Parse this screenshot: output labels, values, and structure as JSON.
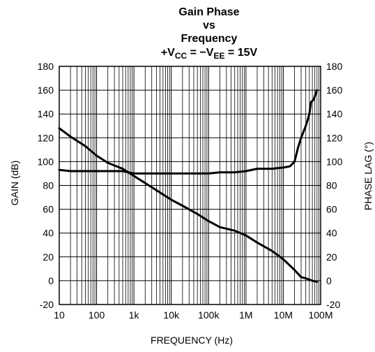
{
  "chart_data": {
    "type": "line",
    "title_lines": [
      "Gain Phase",
      "vs",
      "Frequency"
    ],
    "subtitle": {
      "p1": "+V",
      "s1": "CC",
      "p2": " = −V",
      "s2": "EE",
      "p3": " = 15V"
    },
    "xlabel": "FREQUENCY (Hz)",
    "ylabel_left": "GAIN (dB)",
    "ylabel_right": "PHASE LAG (°)",
    "x_scale": "log",
    "xlim": [
      10,
      100000000
    ],
    "ylim": [
      -20,
      180
    ],
    "x_ticks": [
      {
        "value": 10,
        "label": "10"
      },
      {
        "value": 100,
        "label": "100"
      },
      {
        "value": 1000,
        "label": "1k"
      },
      {
        "value": 10000,
        "label": "10k"
      },
      {
        "value": 100000,
        "label": "100k"
      },
      {
        "value": 1000000,
        "label": "1M"
      },
      {
        "value": 10000000,
        "label": "10M"
      },
      {
        "value": 100000000,
        "label": "100M"
      }
    ],
    "y_ticks_left": [
      "-20",
      "0",
      "20",
      "40",
      "60",
      "80",
      "100",
      "120",
      "140",
      "160",
      "180"
    ],
    "y_ticks_right": [
      "-20",
      "0",
      "20",
      "40",
      "60",
      "80",
      "100",
      "120",
      "140",
      "160",
      "180"
    ],
    "grid": true,
    "series": [
      {
        "points": [
          [
            10,
            128
          ],
          [
            20,
            121
          ],
          [
            50,
            113
          ],
          [
            100,
            105
          ],
          [
            200,
            99
          ],
          [
            500,
            94
          ],
          [
            1000,
            88
          ],
          [
            2000,
            82
          ],
          [
            5000,
            74
          ],
          [
            10000,
            68
          ],
          [
            20000,
            63
          ],
          [
            50000,
            56
          ],
          [
            100000,
            50
          ],
          [
            200000,
            45
          ],
          [
            500000,
            42
          ],
          [
            1000000,
            38
          ],
          [
            2000000,
            32
          ],
          [
            5000000,
            25
          ],
          [
            10000000,
            18
          ],
          [
            20000000,
            9
          ],
          [
            30000000,
            3
          ],
          [
            40000000,
            2
          ],
          [
            60000000,
            0
          ],
          [
            80000000,
            -1
          ]
        ]
      },
      {
        "points": [
          [
            10,
            93
          ],
          [
            20,
            92
          ],
          [
            100,
            92
          ],
          [
            500,
            92
          ],
          [
            1000,
            90
          ],
          [
            10000,
            90
          ],
          [
            100000,
            90
          ],
          [
            200000,
            91
          ],
          [
            500000,
            91
          ],
          [
            1000000,
            92
          ],
          [
            2000000,
            94
          ],
          [
            5000000,
            94
          ],
          [
            10000000,
            95
          ],
          [
            15000000,
            96
          ],
          [
            20000000,
            100
          ],
          [
            25000000,
            112
          ],
          [
            30000000,
            120
          ],
          [
            40000000,
            130
          ],
          [
            50000000,
            140
          ],
          [
            55000000,
            150
          ],
          [
            65000000,
            152
          ],
          [
            70000000,
            155
          ],
          [
            80000000,
            160
          ]
        ]
      }
    ],
    "line_color": "#000000",
    "grid_color": "#000000"
  }
}
